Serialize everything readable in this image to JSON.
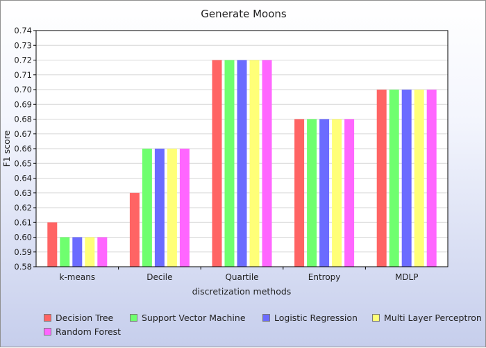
{
  "chart_data": {
    "type": "bar",
    "title": "Generate Moons",
    "xlabel": "discretization methods",
    "ylabel": "F1 score",
    "ylim": [
      0.58,
      0.74
    ],
    "yticks": [
      "0.58",
      "0.59",
      "0.60",
      "0.61",
      "0.62",
      "0.63",
      "0.64",
      "0.65",
      "0.66",
      "0.67",
      "0.68",
      "0.69",
      "0.70",
      "0.71",
      "0.72",
      "0.73",
      "0.74"
    ],
    "grid": true,
    "legend_position": "bottom",
    "categories": [
      "k-means",
      "Decile",
      "Quartile",
      "Entropy",
      "MDLP"
    ],
    "series": [
      {
        "name": "Decision Tree",
        "color": "#ff6464",
        "values": [
          0.61,
          0.63,
          0.72,
          0.68,
          0.7
        ]
      },
      {
        "name": "Support Vector Machine",
        "color": "#6fff6f",
        "values": [
          0.6,
          0.66,
          0.72,
          0.68,
          0.7
        ]
      },
      {
        "name": "Logistic Regression",
        "color": "#6b6bff",
        "values": [
          0.6,
          0.66,
          0.72,
          0.68,
          0.7
        ]
      },
      {
        "name": "Multi Layer Perceptron",
        "color": "#ffff78",
        "values": [
          0.6,
          0.66,
          0.72,
          0.68,
          0.7
        ]
      },
      {
        "name": "Random Forest",
        "color": "#ff66ff",
        "values": [
          0.6,
          0.66,
          0.72,
          0.68,
          0.7
        ]
      }
    ]
  }
}
